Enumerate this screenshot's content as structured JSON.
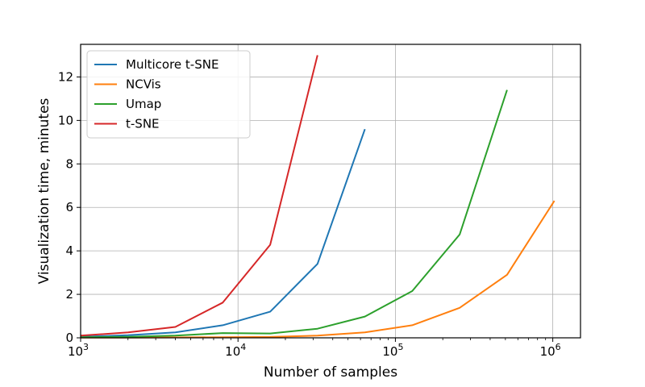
{
  "chart_data": {
    "type": "line",
    "title": "",
    "xlabel": "Number of samples",
    "ylabel": "Visualization time, minutes",
    "xscale": "log",
    "xlim": [
      1000,
      1500000
    ],
    "ylim": [
      0,
      13.5
    ],
    "grid": true,
    "legend_position": "top-left",
    "x_ticks": [
      {
        "base": "10",
        "exp": "3",
        "value": 1000
      },
      {
        "base": "10",
        "exp": "4",
        "value": 10000
      },
      {
        "base": "10",
        "exp": "5",
        "value": 100000
      },
      {
        "base": "10",
        "exp": "6",
        "value": 1000000
      }
    ],
    "y_ticks": [
      {
        "label": "0",
        "value": 0
      },
      {
        "label": "2",
        "value": 2
      },
      {
        "label": "4",
        "value": 4
      },
      {
        "label": "6",
        "value": 6
      },
      {
        "label": "8",
        "value": 8
      },
      {
        "label": "10",
        "value": 10
      },
      {
        "label": "12",
        "value": 12
      }
    ],
    "series": [
      {
        "name": "Multicore t-SNE",
        "color": "#1f77b4",
        "points": [
          [
            1000,
            0.05
          ],
          [
            2000,
            0.12
          ],
          [
            4000,
            0.25
          ],
          [
            8000,
            0.58
          ],
          [
            16000,
            1.2
          ],
          [
            32000,
            3.4
          ],
          [
            64000,
            9.6
          ]
        ]
      },
      {
        "name": "NCVis",
        "color": "#ff7f0e",
        "points": [
          [
            1000,
            0.01
          ],
          [
            2000,
            0.01
          ],
          [
            4000,
            0.02
          ],
          [
            8000,
            0.03
          ],
          [
            16000,
            0.04
          ],
          [
            32000,
            0.1
          ],
          [
            64000,
            0.25
          ],
          [
            128000,
            0.58
          ],
          [
            256000,
            1.38
          ],
          [
            512000,
            2.9
          ],
          [
            1024000,
            6.3
          ]
        ]
      },
      {
        "name": "Umap",
        "color": "#2ca02c",
        "points": [
          [
            1000,
            0.03
          ],
          [
            2000,
            0.05
          ],
          [
            4000,
            0.1
          ],
          [
            8000,
            0.22
          ],
          [
            16000,
            0.2
          ],
          [
            32000,
            0.42
          ],
          [
            64000,
            0.98
          ],
          [
            128000,
            2.15
          ],
          [
            256000,
            4.75
          ],
          [
            512000,
            11.4
          ]
        ]
      },
      {
        "name": "t-SNE",
        "color": "#d62728",
        "points": [
          [
            1000,
            0.1
          ],
          [
            2000,
            0.25
          ],
          [
            4000,
            0.5
          ],
          [
            8000,
            1.62
          ],
          [
            16000,
            4.28
          ],
          [
            32000,
            13.0
          ]
        ]
      }
    ]
  }
}
